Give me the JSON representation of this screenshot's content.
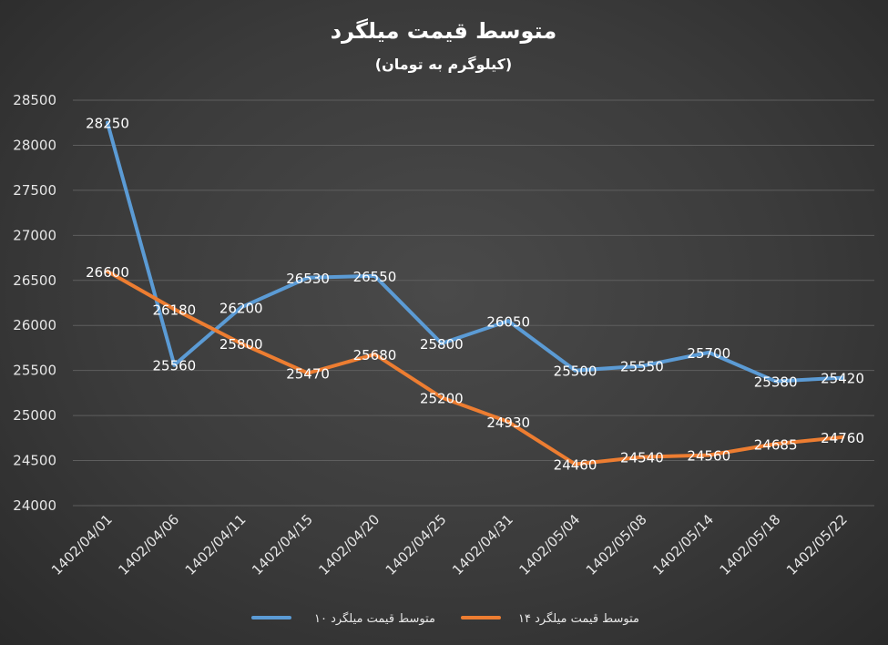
{
  "chart_data": {
    "type": "line",
    "title": "متوسط قیمت میلگرد",
    "subtitle": "(کیلوگرم به تومان)",
    "xlabel": "",
    "ylabel": "",
    "categories": [
      "1402/04/01",
      "1402/04/06",
      "1402/04/11",
      "1402/04/15",
      "1402/04/20",
      "1402/04/25",
      "1402/04/31",
      "1402/05/04",
      "1402/05/08",
      "1402/05/14",
      "1402/05/18",
      "1402/05/22"
    ],
    "ylim": [
      24000,
      28500
    ],
    "yticks": [
      24000,
      24500,
      25000,
      25500,
      26000,
      26500,
      27000,
      27500,
      28000,
      28500
    ],
    "grid": true,
    "legend_position": "bottom",
    "series": [
      {
        "name": "متوسط قیمت میلگرد ۱۰",
        "color": "#5b9bd5",
        "values": [
          28250,
          25560,
          26200,
          26530,
          26550,
          25800,
          26050,
          25500,
          25550,
          25700,
          25380,
          25420
        ]
      },
      {
        "name": "متوسط قیمت میلگرد ۱۴",
        "color": "#ed7d31",
        "values": [
          26600,
          26180,
          25800,
          25470,
          25680,
          25200,
          24930,
          24460,
          24540,
          24560,
          24685,
          24760
        ]
      }
    ]
  }
}
